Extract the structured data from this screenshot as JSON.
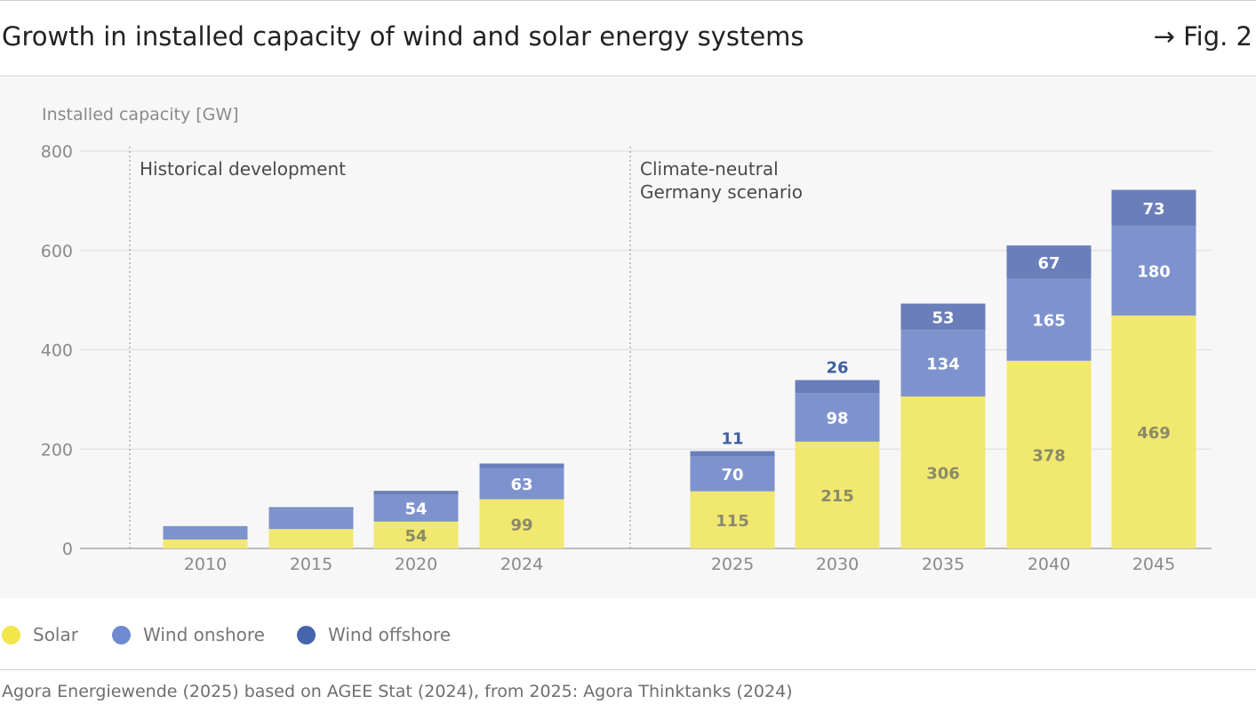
{
  "header": {
    "title": "Growth in installed capacity of wind and solar energy systems",
    "fig_ref": "→ Fig. 2"
  },
  "colors": {
    "solar": "#f1e86f",
    "wind_onshore": "#7e93ce",
    "wind_offshore": "#6a7fba",
    "legend_solar": "#f1e64a",
    "legend_wind_onshore": "#6f8ad0",
    "legend_wind_offshore": "#4566ad",
    "panel": "#f7f7f7",
    "grid": "#dcdcdc",
    "label_outside": "#3e5fa3"
  },
  "chart_data": {
    "type": "bar",
    "stacked": true,
    "ylabel": "Installed capacity [GW]",
    "ylim": [
      0,
      800
    ],
    "yticks": [
      0,
      200,
      400,
      600,
      800
    ],
    "grid": true,
    "categories": [
      "2010",
      "2015",
      "2020",
      "2024",
      "2025",
      "2030",
      "2035",
      "2040",
      "2045"
    ],
    "groups": [
      {
        "label": "Historical development",
        "categories": [
          "2010",
          "2015",
          "2020",
          "2024"
        ]
      },
      {
        "label": "Climate-neutral\nGermany scenario",
        "categories": [
          "2025",
          "2030",
          "2035",
          "2040",
          "2045"
        ]
      }
    ],
    "series": [
      {
        "name": "Solar",
        "values": [
          18,
          39,
          54,
          99,
          115,
          215,
          306,
          378,
          469
        ],
        "labels": [
          "",
          "",
          "54",
          "99",
          "115",
          "215",
          "306",
          "378",
          "469"
        ]
      },
      {
        "name": "Wind onshore",
        "values": [
          27,
          41,
          54,
          63,
          70,
          98,
          134,
          165,
          180
        ],
        "labels": [
          "",
          "",
          "54",
          "63",
          "70",
          "98",
          "134",
          "165",
          "180"
        ]
      },
      {
        "name": "Wind offshore",
        "values": [
          0,
          3,
          8,
          9,
          11,
          26,
          53,
          67,
          73
        ],
        "labels": [
          "",
          "",
          "",
          "",
          "11",
          "26",
          "53",
          "67",
          "73"
        ]
      }
    ],
    "legend_position": "bottom-left"
  },
  "legend": {
    "items": [
      {
        "label": "Solar"
      },
      {
        "label": "Wind onshore"
      },
      {
        "label": "Wind offshore"
      }
    ]
  },
  "footer": {
    "source": "Agora Energiewende (2025) based on AGEE Stat (2024), from 2025: Agora Thinktanks (2024)"
  }
}
